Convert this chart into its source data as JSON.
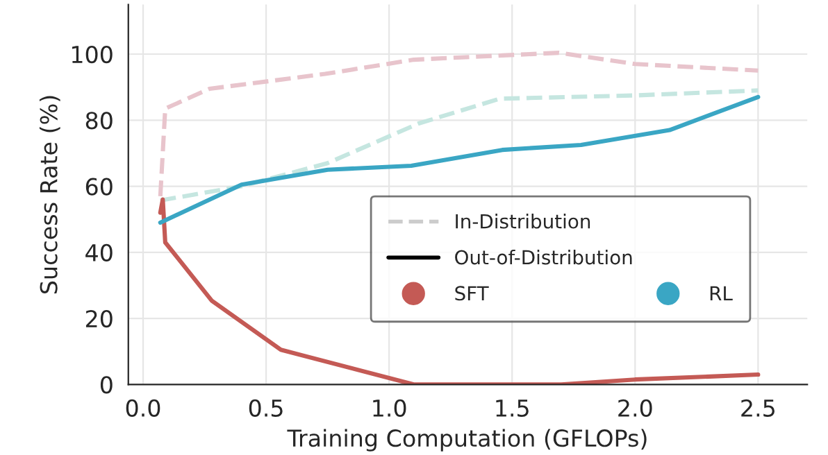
{
  "chart_data": {
    "type": "line",
    "xlabel": "Training Computation (GFLOPs)",
    "ylabel": "Success Rate (%)",
    "xlim": [
      -0.06,
      2.7
    ],
    "ylim": [
      0,
      115
    ],
    "xticks": [
      {
        "value": 0,
        "label": "0.0"
      },
      0.5,
      {
        "value": 1,
        "label": "1.0"
      },
      1.5,
      {
        "value": 2,
        "label": "2.0"
      },
      2.5
    ],
    "yticks": [
      0,
      20,
      40,
      60,
      80,
      100
    ],
    "grid": true,
    "legend": "lower right",
    "annotations": [
      "In-Distribution",
      "Out-of-Distribution"
    ],
    "series": [
      {
        "line_style": "dashed",
        "color": "#e8c4cc",
        "x": [
          0.07,
          0.09,
          0.27,
          0.74,
          1.1,
          1.46,
          1.69,
          2.0,
          2.5
        ],
        "values": [
          57,
          83.5,
          89.5,
          94,
          98.3,
          99.6,
          100.4,
          97,
          95
        ]
      },
      {
        "line_style": "dashed",
        "color": "#c5e6e0",
        "x": [
          0.07,
          0.4,
          0.75,
          1.12,
          1.45,
          2.0,
          2.5
        ],
        "values": [
          55.7,
          60,
          67,
          79,
          86.5,
          87.5,
          89
        ]
      },
      {
        "line_style": "solid",
        "name": "SFT",
        "color": "#c45a55",
        "x": [
          0.07,
          0.08,
          0.09,
          0.28,
          0.56,
          1.1,
          1.7,
          2.0,
          2.5
        ],
        "values": [
          52,
          56,
          43,
          25.3,
          10.5,
          0,
          0,
          1.5,
          3
        ]
      },
      {
        "line_style": "solid",
        "name": "RL",
        "color": "#3aa6c4",
        "x": [
          0.07,
          0.4,
          0.75,
          1.09,
          1.46,
          1.78,
          2.14,
          2.5
        ],
        "values": [
          49,
          60.5,
          65,
          66.2,
          71,
          72.5,
          77,
          87
        ]
      }
    ]
  }
}
